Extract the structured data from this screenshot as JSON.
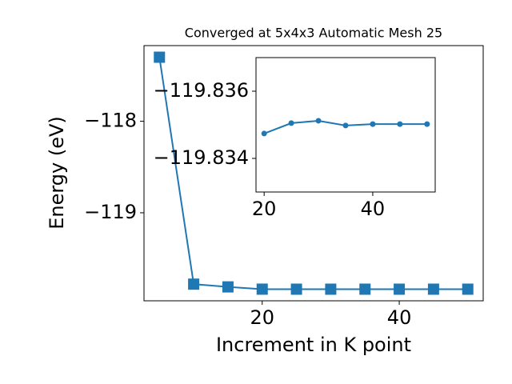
{
  "chart_data": [
    {
      "type": "line",
      "title": "Converged at 5x4x3 Automatic Mesh 25",
      "xlabel": "Increment in K point",
      "ylabel": "Energy (eV)",
      "x": [
        5,
        10,
        15,
        20,
        25,
        30,
        35,
        40,
        45,
        50
      ],
      "series": [
        {
          "name": "Energy",
          "color": "#1f77b4",
          "marker": "square",
          "values": [
            -117.3,
            -119.78,
            -119.81,
            -119.83474,
            -119.83505,
            -119.83512,
            -119.83498,
            -119.83502,
            -119.83502,
            -119.83502
          ]
        }
      ],
      "xlim": [
        2.75,
        52.25
      ],
      "ylim": [
        -119.962,
        -117.173
      ],
      "xticks": [
        20,
        40
      ],
      "yticks": [
        {
          "value": -118,
          "label": "−118"
        },
        {
          "value": -119,
          "label": "−119"
        }
      ]
    },
    {
      "type": "line",
      "x": [
        20,
        25,
        30,
        35,
        40,
        45,
        50
      ],
      "series": [
        {
          "name": "Energy",
          "color": "#1f77b4",
          "marker": "circle",
          "values": [
            -119.83474,
            -119.83505,
            -119.83512,
            -119.83498,
            -119.83502,
            -119.83502,
            -119.83502
          ]
        }
      ],
      "xlim": [
        18.5,
        51.5
      ],
      "ylim": [
        -119.833,
        -119.837
      ],
      "xticks": [
        20,
        40
      ],
      "yticks": [
        {
          "value": -119.836,
          "label": "−119.836"
        },
        {
          "value": -119.834,
          "label": "−119.834"
        }
      ]
    }
  ]
}
